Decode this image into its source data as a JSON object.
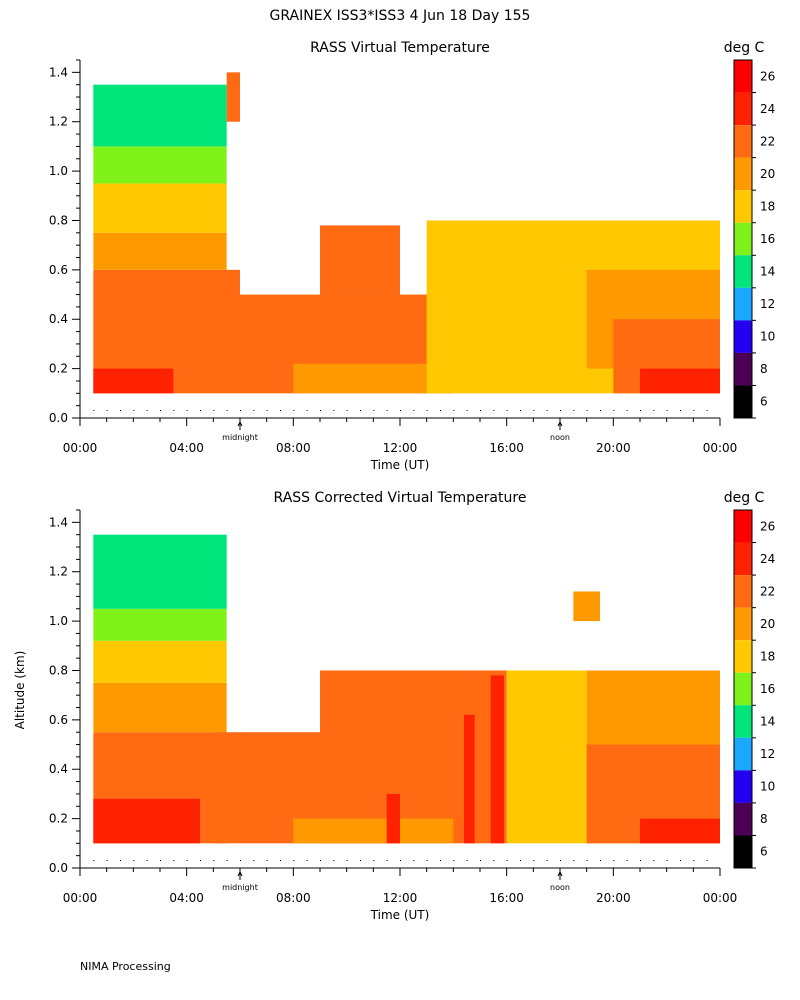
{
  "header": {
    "title": "GRAINEX ISS3*ISS3    4 Jun 18 Day 155"
  },
  "footer": {
    "text": "NIMA Processing"
  },
  "colors": {
    "6": "#000000",
    "8": "#4b0055",
    "10": "#2300f0",
    "12": "#1aa8ff",
    "14": "#00e57a",
    "16": "#7ff21a",
    "18": "#ffc800",
    "20": "#ff9900",
    "22": "#ff6a12",
    "24": "#ff2200",
    "26": "#ff0000"
  },
  "chart_data": [
    {
      "type": "heatmap",
      "title": "RASS Virtual Temperature",
      "xlabel": "Time (UT)",
      "ylabel": "",
      "colorbar_label": "deg C",
      "x_ticks": [
        "00:00",
        "04:00",
        "08:00",
        "12:00",
        "16:00",
        "20:00",
        "00:00"
      ],
      "y_ticks": [
        "0.0",
        "0.2",
        "0.4",
        "0.6",
        "0.8",
        "1.0",
        "1.2",
        "1.4"
      ],
      "xlim_hours": [
        0,
        24
      ],
      "ylim_km": [
        0,
        1.45
      ],
      "markers": [
        {
          "label": "midnight",
          "hour": 6
        },
        {
          "label": "noon",
          "hour": 18
        }
      ],
      "colorbar_ticks": [
        "26",
        "24",
        "22",
        "20",
        "18",
        "16",
        "14",
        "12",
        "10",
        "8",
        "6"
      ],
      "regions": [
        {
          "temp": 22,
          "hours": [
            0.5,
            6
          ],
          "alt": [
            0.1,
            0.6
          ]
        },
        {
          "temp": 20,
          "hours": [
            0.5,
            5.5
          ],
          "alt": [
            0.6,
            0.75
          ]
        },
        {
          "temp": 18,
          "hours": [
            0.5,
            5.5
          ],
          "alt": [
            0.75,
            0.95
          ]
        },
        {
          "temp": 16,
          "hours": [
            0.5,
            5.5
          ],
          "alt": [
            0.95,
            1.1
          ]
        },
        {
          "temp": 14,
          "hours": [
            0.5,
            5.5
          ],
          "alt": [
            1.1,
            1.35
          ]
        },
        {
          "temp": 24,
          "hours": [
            0.5,
            3.5
          ],
          "alt": [
            0.1,
            0.2
          ]
        },
        {
          "temp": 22,
          "hours": [
            5.5,
            6
          ],
          "alt": [
            1.2,
            1.4
          ]
        },
        {
          "temp": 22,
          "hours": [
            6,
            14
          ],
          "alt": [
            0.1,
            0.5
          ]
        },
        {
          "temp": 22,
          "hours": [
            9,
            12
          ],
          "alt": [
            0.5,
            0.78
          ]
        },
        {
          "temp": 20,
          "hours": [
            8,
            14
          ],
          "alt": [
            0.1,
            0.22
          ]
        },
        {
          "temp": 18,
          "hours": [
            13,
            24
          ],
          "alt": [
            0.1,
            0.8
          ]
        },
        {
          "temp": 20,
          "hours": [
            19,
            24
          ],
          "alt": [
            0.2,
            0.6
          ]
        },
        {
          "temp": 22,
          "hours": [
            20,
            24
          ],
          "alt": [
            0.1,
            0.4
          ]
        },
        {
          "temp": 24,
          "hours": [
            21,
            24
          ],
          "alt": [
            0.1,
            0.2
          ]
        }
      ]
    },
    {
      "type": "heatmap",
      "title": "RASS Corrected Virtual Temperature",
      "xlabel": "Time (UT)",
      "ylabel": "Altitude (km)",
      "colorbar_label": "deg C",
      "x_ticks": [
        "00:00",
        "04:00",
        "08:00",
        "12:00",
        "16:00",
        "20:00",
        "00:00"
      ],
      "y_ticks": [
        "0.0",
        "0.2",
        "0.4",
        "0.6",
        "0.8",
        "1.0",
        "1.2",
        "1.4"
      ],
      "xlim_hours": [
        0,
        24
      ],
      "ylim_km": [
        0,
        1.45
      ],
      "markers": [
        {
          "label": "midnight",
          "hour": 6
        },
        {
          "label": "noon",
          "hour": 18
        }
      ],
      "colorbar_ticks": [
        "26",
        "24",
        "22",
        "20",
        "18",
        "16",
        "14",
        "12",
        "10",
        "8",
        "6"
      ],
      "regions": [
        {
          "temp": 22,
          "hours": [
            0.5,
            5.5
          ],
          "alt": [
            0.1,
            0.55
          ]
        },
        {
          "temp": 20,
          "hours": [
            0.5,
            5.5
          ],
          "alt": [
            0.55,
            0.75
          ]
        },
        {
          "temp": 18,
          "hours": [
            0.5,
            5.5
          ],
          "alt": [
            0.75,
            0.92
          ]
        },
        {
          "temp": 16,
          "hours": [
            0.5,
            5.5
          ],
          "alt": [
            0.92,
            1.05
          ]
        },
        {
          "temp": 14,
          "hours": [
            0.5,
            5.5
          ],
          "alt": [
            1.05,
            1.35
          ]
        },
        {
          "temp": 24,
          "hours": [
            0.5,
            4.5
          ],
          "alt": [
            0.1,
            0.28
          ]
        },
        {
          "temp": 22,
          "hours": [
            5,
            12
          ],
          "alt": [
            0.1,
            0.55
          ]
        },
        {
          "temp": 22,
          "hours": [
            9,
            16
          ],
          "alt": [
            0.1,
            0.8
          ]
        },
        {
          "temp": 20,
          "hours": [
            8,
            14
          ],
          "alt": [
            0.1,
            0.2
          ]
        },
        {
          "temp": 18,
          "hours": [
            16,
            19
          ],
          "alt": [
            0.1,
            0.8
          ]
        },
        {
          "temp": 20,
          "hours": [
            19,
            24
          ],
          "alt": [
            0.1,
            0.8
          ]
        },
        {
          "temp": 22,
          "hours": [
            19,
            24
          ],
          "alt": [
            0.1,
            0.5
          ]
        },
        {
          "temp": 24,
          "hours": [
            14.4,
            14.8
          ],
          "alt": [
            0.1,
            0.62
          ]
        },
        {
          "temp": 24,
          "hours": [
            15.4,
            15.9
          ],
          "alt": [
            0.1,
            0.78
          ]
        },
        {
          "temp": 24,
          "hours": [
            11.5,
            12
          ],
          "alt": [
            0.1,
            0.3
          ]
        },
        {
          "temp": 24,
          "hours": [
            21,
            24
          ],
          "alt": [
            0.1,
            0.2
          ]
        },
        {
          "temp": 20,
          "hours": [
            18.5,
            19.5
          ],
          "alt": [
            1.0,
            1.12
          ]
        }
      ]
    }
  ]
}
